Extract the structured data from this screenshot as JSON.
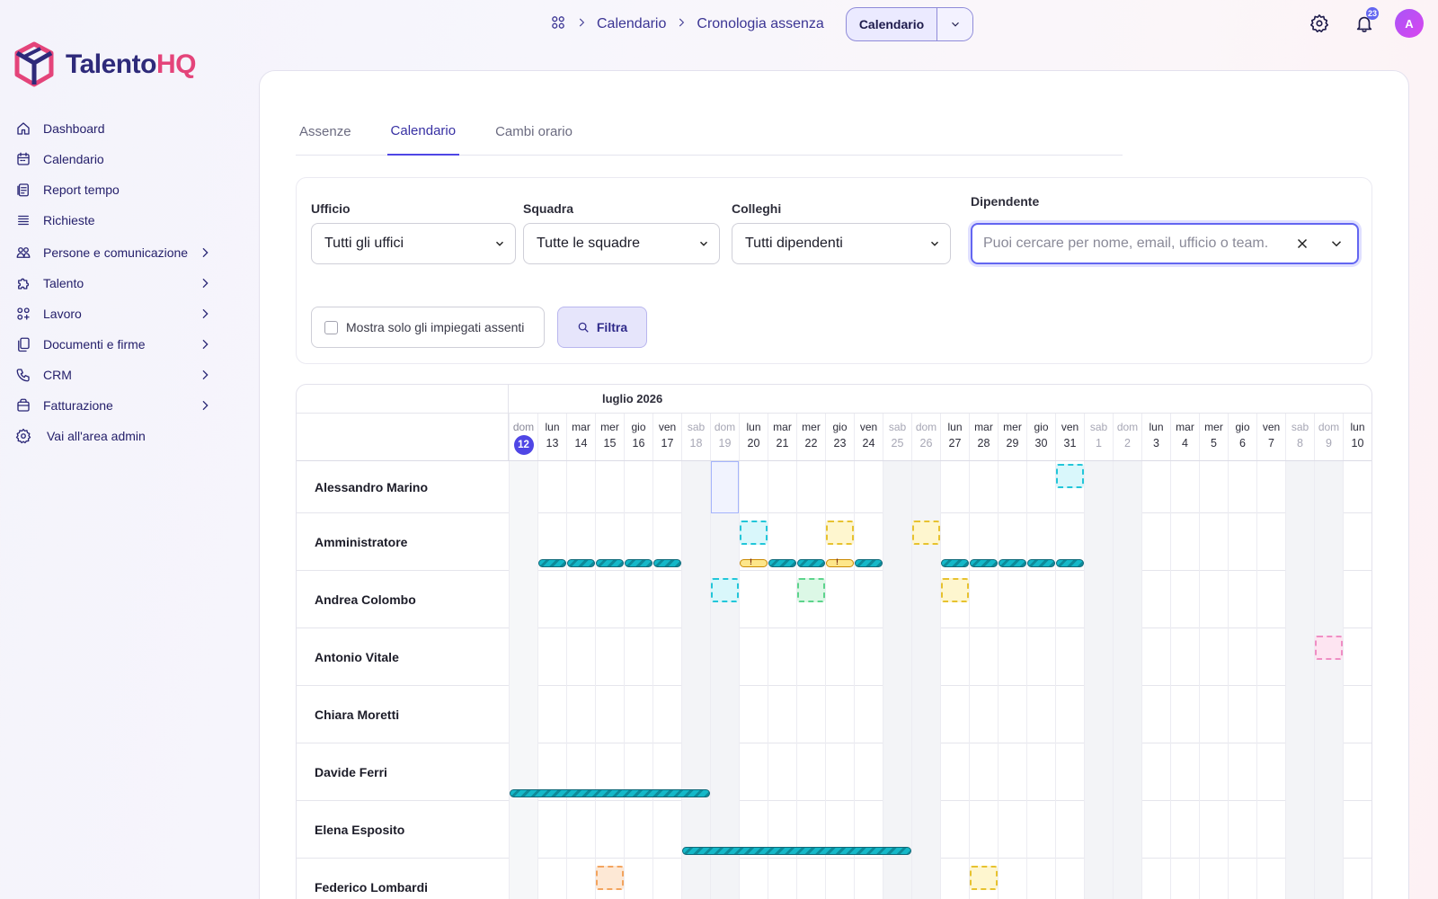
{
  "brand": {
    "part1": "Talento",
    "part2": "HQ"
  },
  "nav": [
    {
      "label": "Dashboard",
      "icon": "home-icon",
      "chevron": false
    },
    {
      "label": "Calendario",
      "icon": "calendar-icon",
      "chevron": false
    },
    {
      "label": "Report tempo",
      "icon": "report-icon",
      "chevron": false
    },
    {
      "label": "Richieste",
      "icon": "list-icon",
      "chevron": false
    },
    {
      "label": "Persone e comunicazione",
      "icon": "people-icon",
      "chevron": true
    },
    {
      "label": "Talento",
      "icon": "puzzle-icon",
      "chevron": true
    },
    {
      "label": "Lavoro",
      "icon": "apps-icon",
      "chevron": true
    },
    {
      "label": "Documenti e firme",
      "icon": "documents-icon",
      "chevron": true
    },
    {
      "label": "CRM",
      "icon": "phone-icon",
      "chevron": true
    },
    {
      "label": "Fatturazione",
      "icon": "billing-icon",
      "chevron": true
    },
    {
      "label": "Vai all'area admin",
      "icon": "gear-icon",
      "chevron": false
    }
  ],
  "breadcrumb": {
    "items": [
      "Calendario",
      "Cronologia assenza"
    ],
    "button_label": "Calendario"
  },
  "notifications": {
    "count": "23"
  },
  "user": {
    "initial": "A"
  },
  "tabs": [
    {
      "label": "Assenze",
      "active": false
    },
    {
      "label": "Calendario",
      "active": true
    },
    {
      "label": "Cambi orario",
      "active": false
    }
  ],
  "filters": {
    "ufficio_label": "Ufficio",
    "ufficio_value": "Tutti gli uffici",
    "squadra_label": "Squadra",
    "squadra_value": "Tutte le squadre",
    "colleghi_label": "Colleghi",
    "colleghi_value": "Tutti dipendenti",
    "dipendente_label": "Dipendente",
    "dipendente_placeholder": "Puoi cercare per nome, email, ufficio o team.",
    "checkbox_label": "Mostra solo gli impiegati assenti",
    "filter_button": "Filtra"
  },
  "calendar": {
    "month_label": "luglio 2026",
    "days": [
      {
        "w": "dom",
        "n": "12",
        "weekend": true,
        "today": true
      },
      {
        "w": "lun",
        "n": "13"
      },
      {
        "w": "mar",
        "n": "14"
      },
      {
        "w": "mer",
        "n": "15"
      },
      {
        "w": "gio",
        "n": "16"
      },
      {
        "w": "ven",
        "n": "17"
      },
      {
        "w": "sab",
        "n": "18",
        "weekend": true
      },
      {
        "w": "dom",
        "n": "19",
        "weekend": true
      },
      {
        "w": "lun",
        "n": "20"
      },
      {
        "w": "mar",
        "n": "21"
      },
      {
        "w": "mer",
        "n": "22"
      },
      {
        "w": "gio",
        "n": "23"
      },
      {
        "w": "ven",
        "n": "24"
      },
      {
        "w": "sab",
        "n": "25",
        "weekend": true
      },
      {
        "w": "dom",
        "n": "26",
        "weekend": true
      },
      {
        "w": "lun",
        "n": "27"
      },
      {
        "w": "mar",
        "n": "28"
      },
      {
        "w": "mer",
        "n": "29"
      },
      {
        "w": "gio",
        "n": "30"
      },
      {
        "w": "ven",
        "n": "31"
      },
      {
        "w": "sab",
        "n": "1",
        "weekend": true
      },
      {
        "w": "dom",
        "n": "2",
        "weekend": true
      },
      {
        "w": "lun",
        "n": "3"
      },
      {
        "w": "mar",
        "n": "4"
      },
      {
        "w": "mer",
        "n": "5"
      },
      {
        "w": "gio",
        "n": "6"
      },
      {
        "w": "ven",
        "n": "7"
      },
      {
        "w": "sab",
        "n": "8",
        "weekend": true
      },
      {
        "w": "dom",
        "n": "9",
        "weekend": true
      },
      {
        "w": "lun",
        "n": "10"
      }
    ],
    "employees": [
      {
        "name": "Alessandro Marino",
        "selected_day": 7,
        "marks": [
          {
            "day": 19,
            "color": "cyan"
          }
        ],
        "bars": []
      },
      {
        "name": "Amministratore",
        "marks": [
          {
            "day": 8,
            "color": "cyan"
          },
          {
            "day": 11,
            "color": "yellow"
          },
          {
            "day": 14,
            "color": "yellow"
          }
        ],
        "bars": [
          {
            "day": 1
          },
          {
            "day": 2
          },
          {
            "day": 3
          },
          {
            "day": 4
          },
          {
            "day": 5
          },
          {
            "day": 8,
            "warn": true
          },
          {
            "day": 9
          },
          {
            "day": 10
          },
          {
            "day": 11,
            "warn": true
          },
          {
            "day": 12
          },
          {
            "day": 15
          },
          {
            "day": 16
          },
          {
            "day": 17
          },
          {
            "day": 18
          },
          {
            "day": 19
          }
        ]
      },
      {
        "name": "Andrea Colombo",
        "marks": [
          {
            "day": 7,
            "color": "cyan"
          },
          {
            "day": 10,
            "color": "green"
          },
          {
            "day": 15,
            "color": "yellow"
          }
        ],
        "bars": []
      },
      {
        "name": "Antonio Vitale",
        "marks": [
          {
            "day": 28,
            "color": "pink"
          }
        ],
        "bars": []
      },
      {
        "name": "Chiara Moretti",
        "marks": [],
        "bars": []
      },
      {
        "name": "Davide Ferri",
        "marks": [],
        "bars": [
          {
            "day": 0,
            "span": 7
          }
        ]
      },
      {
        "name": "Elena Esposito",
        "marks": [],
        "bars": [
          {
            "day": 6,
            "span": 8
          }
        ]
      },
      {
        "name": "Federico Lombardi",
        "marks": [
          {
            "day": 3,
            "color": "orange"
          },
          {
            "day": 16,
            "color": "yellow"
          }
        ],
        "bars": []
      }
    ]
  }
}
